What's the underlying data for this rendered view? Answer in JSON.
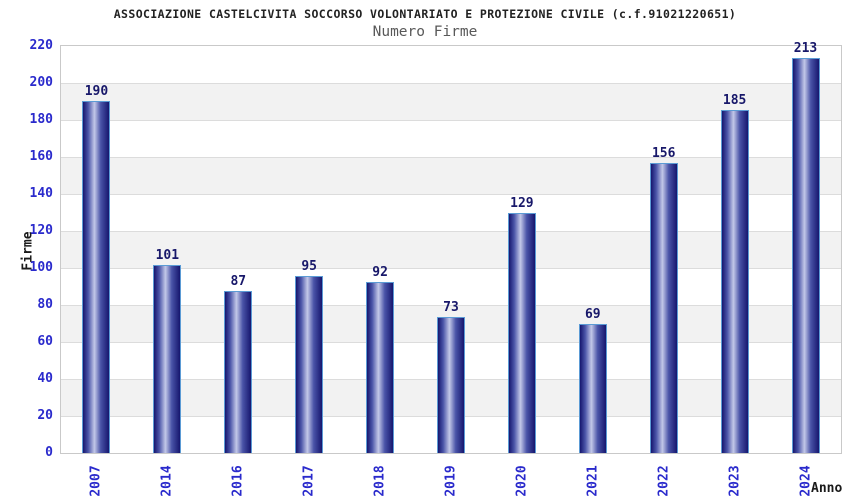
{
  "header": {
    "title": "ASSOCIAZIONE CASTELCIVITA SOCCORSO VOLONTARIATO E PROTEZIONE CIVILE (c.f.91021220651)",
    "subtitle": "Numero Firme"
  },
  "chart_data": {
    "type": "bar",
    "title": "Numero Firme",
    "categories": [
      "2007",
      "2014",
      "2016",
      "2017",
      "2018",
      "2019",
      "2020",
      "2021",
      "2022",
      "2023",
      "2024"
    ],
    "values": [
      190,
      101,
      87,
      95,
      92,
      73,
      129,
      69,
      156,
      185,
      213
    ],
    "xlabel": "Anno",
    "ylabel": "Firme",
    "ylim": [
      0,
      220
    ],
    "ytick_step": 20,
    "yticks": [
      0,
      20,
      40,
      60,
      80,
      100,
      120,
      140,
      160,
      180,
      200,
      220
    ],
    "grid": "horizontal-bands",
    "legend": "none",
    "colors": {
      "bar_dark": "#16166e",
      "bar_mid": "#4a54a8",
      "bar_light": "#c3c8e8",
      "bar_border": "#5b9bd5",
      "tick_label": "#2a2acc",
      "value_label": "#18186a",
      "band": "#f2f2f2",
      "gridline": "#dcdcdc",
      "plot_border": "#c9c9c9",
      "title": "#222222",
      "subtitle": "#595959",
      "axis_label": "#1a1a1a"
    }
  }
}
